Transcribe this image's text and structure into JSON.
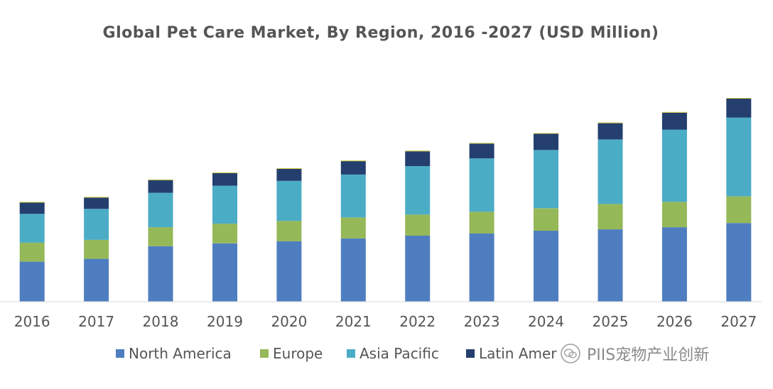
{
  "chart_data": {
    "type": "bar",
    "stacked": true,
    "title": "Global Pet Care Market, By Region, 2016 -2027 (USD Million)",
    "xlabel": "",
    "ylabel": "",
    "categories": [
      "2016",
      "2017",
      "2018",
      "2019",
      "2020",
      "2021",
      "2022",
      "2023",
      "2024",
      "2025",
      "2026",
      "2027"
    ],
    "ylim": [
      0,
      290
    ],
    "grid": false,
    "legend_position": "bottom",
    "series": [
      {
        "name": "North America",
        "color": "#4F7EC0",
        "values": [
          57,
          61,
          79,
          83,
          86,
          90,
          94,
          97,
          101,
          103,
          106,
          112
        ]
      },
      {
        "name": "Europe",
        "color": "#95B858",
        "values": [
          27,
          27,
          27,
          28,
          29,
          30,
          30,
          31,
          32,
          36,
          36,
          38
        ]
      },
      {
        "name": "Asia Pacific",
        "color": "#4BACC6",
        "values": [
          41,
          44,
          49,
          54,
          57,
          61,
          69,
          76,
          83,
          92,
          103,
          112
        ]
      },
      {
        "name": "Latin America",
        "color": "#243F6E",
        "values": [
          16,
          16,
          18,
          18,
          17,
          19,
          21,
          21,
          23,
          23,
          24,
          27
        ]
      },
      {
        "name": "",
        "color": "#C8C23A",
        "values": [
          1,
          1,
          1,
          1,
          1,
          1,
          1,
          1,
          1,
          1,
          1,
          1
        ]
      }
    ]
  },
  "legend": {
    "items": [
      {
        "label": "North America",
        "color": "#4F7EC0"
      },
      {
        "label": "Europe",
        "color": "#95B858"
      },
      {
        "label": "Asia Pacific",
        "color": "#4BACC6"
      },
      {
        "label": "Latin Amer",
        "color": "#243F6E"
      }
    ]
  },
  "watermark": {
    "text": "PIIS宠物产业创新",
    "icon": "wechat-icon"
  }
}
